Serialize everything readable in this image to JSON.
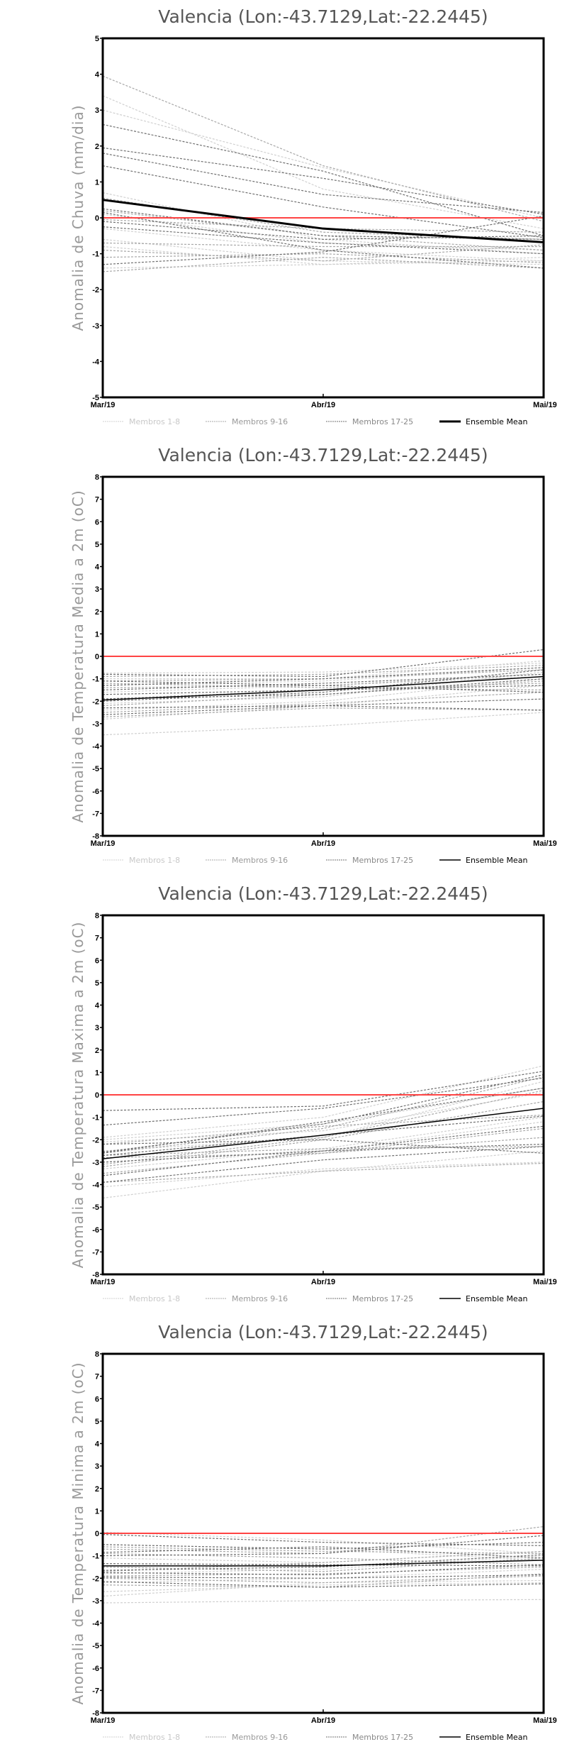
{
  "colors": {
    "group1": "#d0d0d0",
    "group2": "#a8a8a8",
    "group3": "#707070",
    "mean": "#000000",
    "zero_line": "#ff4444"
  },
  "legend": [
    "Membros 1-8",
    "Membros 9-16",
    "Membros 17-25",
    "Ensemble Mean"
  ],
  "chart_data": [
    {
      "type": "line",
      "title": "Valencia (Lon:-43.7129,Lat:-22.2445)",
      "ylabel": "Anomalia de Chuva (mm/dia)",
      "x": [
        "Mar/19",
        "Abr/19",
        "Mai/19"
      ],
      "ylim": [
        -5,
        5
      ],
      "yticks": [
        -5,
        -4,
        -3,
        -2,
        -1,
        0,
        1,
        2,
        3,
        4,
        5
      ],
      "legend_position": "bottom",
      "mean_bold": true,
      "ensemble_mean": [
        0.5,
        -0.3,
        -0.68
      ],
      "members": {
        "Membros 1-8": [
          [
            3.4,
            0.8,
            -0.3
          ],
          [
            3.0,
            1.4,
            0.0
          ],
          [
            0.7,
            -0.6,
            -1.0
          ],
          [
            -0.3,
            -0.9,
            -1.2
          ],
          [
            -0.6,
            -1.2,
            -1.3
          ],
          [
            -0.8,
            -1.3,
            -1.1
          ],
          [
            -1.4,
            -1.3,
            -1.2
          ],
          [
            0.1,
            -0.7,
            -0.9
          ]
        ],
        "Membros 9-16": [
          [
            3.95,
            1.45,
            -0.1
          ],
          [
            -0.7,
            -0.8,
            -0.8
          ],
          [
            -1.1,
            -1.0,
            -1.25
          ],
          [
            0.55,
            -0.4,
            -0.6
          ],
          [
            -0.9,
            -1.2,
            -0.75
          ],
          [
            0.2,
            -0.5,
            -0.9
          ],
          [
            -0.05,
            -0.3,
            -0.4
          ],
          [
            -1.5,
            -1.1,
            -1.4
          ]
        ],
        "Membros 17-25": [
          [
            2.6,
            1.3,
            -0.5
          ],
          [
            1.95,
            1.1,
            0.1
          ],
          [
            1.8,
            0.65,
            0.15
          ],
          [
            1.45,
            0.3,
            -0.55
          ],
          [
            0.25,
            -0.5,
            -0.6
          ],
          [
            0.15,
            -0.9,
            -1.4
          ],
          [
            -0.1,
            -0.6,
            -0.5
          ],
          [
            -1.3,
            -0.95,
            0.05
          ],
          [
            -0.25,
            -0.7,
            -1.0
          ]
        ]
      }
    },
    {
      "type": "line",
      "title": "Valencia (Lon:-43.7129,Lat:-22.2445)",
      "ylabel": "Anomalia de Temperatura Media a 2m (oC)",
      "x": [
        "Mar/19",
        "Abr/19",
        "Mai/19"
      ],
      "ylim": [
        -8,
        8
      ],
      "yticks": [
        -8,
        -7,
        -6,
        -5,
        -4,
        -3,
        -2,
        -1,
        0,
        1,
        2,
        3,
        4,
        5,
        6,
        7,
        8
      ],
      "legend_position": "bottom",
      "mean_bold": false,
      "ensemble_mean": [
        -1.95,
        -1.5,
        -0.9
      ],
      "members": {
        "Membros 1-8": [
          [
            -0.75,
            -0.7,
            -0.3
          ],
          [
            -3.5,
            -3.1,
            -2.5
          ],
          [
            -2.8,
            -2.2,
            -1.3
          ],
          [
            -1.3,
            -1.1,
            -0.5
          ],
          [
            -2.4,
            -2.0,
            -1.0
          ],
          [
            -1.6,
            -1.3,
            -0.9
          ],
          [
            -2.1,
            -1.8,
            -0.7
          ],
          [
            -1.0,
            -1.0,
            -0.2
          ]
        ],
        "Membros 9-16": [
          [
            -2.7,
            -2.3,
            -2.4
          ],
          [
            -1.1,
            -1.0,
            -0.6
          ],
          [
            -1.9,
            -1.5,
            -1.2
          ],
          [
            -0.9,
            -0.8,
            -0.4
          ],
          [
            -2.5,
            -2.1,
            -1.6
          ],
          [
            -1.4,
            -1.3,
            -0.8
          ],
          [
            -2.2,
            -1.7,
            -1.1
          ],
          [
            -1.2,
            -1.4,
            -1.5
          ]
        ],
        "Membros 17-25": [
          [
            -0.8,
            -0.9,
            0.3
          ],
          [
            -1.3,
            -1.0,
            -0.5
          ],
          [
            -2.6,
            -2.2,
            -1.9
          ],
          [
            -1.7,
            -1.5,
            -1.3
          ],
          [
            -2.0,
            -1.6,
            -0.6
          ],
          [
            -1.5,
            -1.2,
            -0.8
          ],
          [
            -2.3,
            -2.2,
            -2.4
          ],
          [
            -1.1,
            -1.3,
            -1.6
          ],
          [
            -1.9,
            -1.7,
            -1.0
          ]
        ]
      }
    },
    {
      "type": "line",
      "title": "Valencia (Lon:-43.7129,Lat:-22.2445)",
      "ylabel": "Anomalia de Temperatura Maxima a 2m (oC)",
      "x": [
        "Mar/19",
        "Abr/19",
        "Mai/19"
      ],
      "ylim": [
        -8,
        8
      ],
      "yticks": [
        -8,
        -7,
        -6,
        -5,
        -4,
        -3,
        -2,
        -1,
        0,
        1,
        2,
        3,
        4,
        5,
        6,
        7,
        8
      ],
      "legend_position": "bottom",
      "mean_bold": false,
      "ensemble_mean": [
        -2.85,
        -1.8,
        -0.6
      ],
      "members": {
        "Membros 1-8": [
          [
            -1.9,
            -1.0,
            1.3
          ],
          [
            -4.6,
            -3.4,
            -2.5
          ],
          [
            -2.0,
            -1.3,
            0.3
          ],
          [
            -3.3,
            -2.4,
            -1.0
          ],
          [
            -4.1,
            -3.3,
            -3.0
          ],
          [
            -2.1,
            -1.6,
            0.1
          ],
          [
            -3.0,
            -2.5,
            -1.2
          ],
          [
            -2.5,
            -1.9,
            0.6
          ]
        ],
        "Membros 9-16": [
          [
            -3.2,
            -2.0,
            -0.3
          ],
          [
            -2.6,
            -1.5,
            0.8
          ],
          [
            -3.9,
            -3.4,
            -3.05
          ],
          [
            -2.8,
            -2.6,
            -1.5
          ],
          [
            -3.1,
            -1.9,
            0.2
          ],
          [
            -2.7,
            -2.4,
            -2.3
          ],
          [
            -3.5,
            -2.6,
            -1.9
          ],
          [
            -2.2,
            -1.4,
            -0.9
          ]
        ],
        "Membros 17-25": [
          [
            -0.7,
            -0.5,
            1.05
          ],
          [
            -1.35,
            -0.6,
            0.75
          ],
          [
            -2.55,
            -1.3,
            0.9
          ],
          [
            -2.2,
            -2.0,
            -2.6
          ],
          [
            -2.7,
            -1.8,
            -0.95
          ],
          [
            -3.6,
            -2.5,
            -2.2
          ],
          [
            -3.9,
            -2.9,
            -2.3
          ],
          [
            -3.0,
            -2.5,
            -1.4
          ],
          [
            -2.6,
            -1.2,
            0.3
          ]
        ]
      }
    },
    {
      "type": "line",
      "title": "Valencia (Lon:-43.7129,Lat:-22.2445)",
      "ylabel": "Anomalia de Temperatura Minima a 2m (oC)",
      "x": [
        "Mar/19",
        "Abr/19",
        "Mai/19"
      ],
      "ylim": [
        -8,
        8
      ],
      "yticks": [
        -8,
        -7,
        -6,
        -5,
        -4,
        -3,
        -2,
        -1,
        0,
        1,
        2,
        3,
        4,
        5,
        6,
        7,
        8
      ],
      "legend_position": "bottom",
      "mean_bold": false,
      "ensemble_mean": [
        -1.45,
        -1.45,
        -1.2
      ],
      "members": {
        "Membros 1-8": [
          [
            0.05,
            -0.3,
            -0.9
          ],
          [
            -3.1,
            -3.0,
            -2.95
          ],
          [
            -2.8,
            -2.2,
            -2.1
          ],
          [
            -1.1,
            -1.3,
            -0.8
          ],
          [
            -2.2,
            -2.0,
            -1.6
          ],
          [
            -0.5,
            -0.7,
            -1.2
          ],
          [
            -2.6,
            -2.3,
            -2.2
          ],
          [
            -1.8,
            -1.6,
            -1.0
          ]
        ],
        "Membros 9-16": [
          [
            -0.7,
            -0.9,
            0.3
          ],
          [
            -1.9,
            -1.8,
            -1.5
          ],
          [
            -2.0,
            -2.2,
            -1.9
          ],
          [
            -0.6,
            -0.8,
            -0.9
          ],
          [
            -1.5,
            -1.7,
            -1.1
          ],
          [
            -2.3,
            -2.4,
            -1.8
          ],
          [
            -0.9,
            -1.1,
            -1.4
          ],
          [
            -1.7,
            -1.3,
            -0.8
          ]
        ],
        "Membros 17-25": [
          [
            -0.5,
            -0.7,
            -0.4
          ],
          [
            -0.85,
            -0.6,
            -1.1
          ],
          [
            -1.0,
            -0.9,
            -0.1
          ],
          [
            -1.35,
            -1.4,
            -1.45
          ],
          [
            -1.75,
            -1.85,
            -1.4
          ],
          [
            -1.95,
            -2.0,
            -1.85
          ],
          [
            -2.15,
            -2.4,
            -2.25
          ],
          [
            -0.05,
            -0.4,
            -0.55
          ],
          [
            -1.65,
            -1.5,
            -0.95
          ]
        ]
      }
    }
  ]
}
